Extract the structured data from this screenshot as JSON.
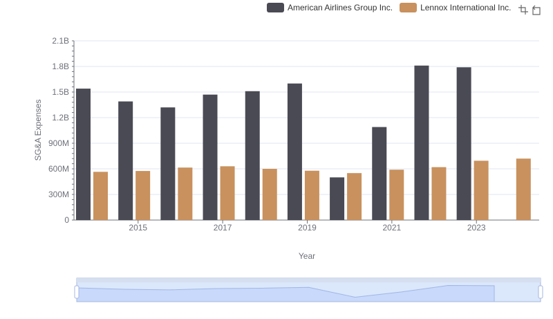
{
  "legend": {
    "series": [
      {
        "name": "American Airlines Group Inc.",
        "color": "#4a4a55"
      },
      {
        "name": "Lennox International Inc.",
        "color": "#c8915e"
      }
    ]
  },
  "toolbar": {
    "icons": [
      "zoom-icon",
      "restore-icon"
    ]
  },
  "chart_data": {
    "type": "bar",
    "xlabel": "Year",
    "ylabel": "SG&A Expenses",
    "ylim": [
      0,
      2100000000
    ],
    "yticks": [
      {
        "value": 0,
        "label": "0"
      },
      {
        "value": 300000000,
        "label": "300M"
      },
      {
        "value": 600000000,
        "label": "600M"
      },
      {
        "value": 900000000,
        "label": "900M"
      },
      {
        "value": 1200000000,
        "label": "1.2B"
      },
      {
        "value": 1500000000,
        "label": "1.5B"
      },
      {
        "value": 1800000000,
        "label": "1.8B"
      },
      {
        "value": 2100000000,
        "label": "2.1B"
      }
    ],
    "categories": [
      "2014",
      "2015",
      "2016",
      "2017",
      "2018",
      "2019",
      "2020",
      "2021",
      "2022",
      "2023",
      "2024"
    ],
    "xtick_labels": [
      "2015",
      "2017",
      "2019",
      "2021",
      "2023"
    ],
    "grid": true,
    "legend_position": "top-right",
    "series": [
      {
        "name": "American Airlines Group Inc.",
        "color": "#4a4a55",
        "values": [
          1540000000,
          1390000000,
          1320000000,
          1470000000,
          1510000000,
          1600000000,
          500000000,
          1090000000,
          1810000000,
          1790000000,
          null
        ]
      },
      {
        "name": "Lennox International Inc.",
        "color": "#c8915e",
        "values": [
          565000000,
          575000000,
          615000000,
          630000000,
          600000000,
          578000000,
          550000000,
          590000000,
          620000000,
          695000000,
          720000000
        ]
      }
    ]
  }
}
